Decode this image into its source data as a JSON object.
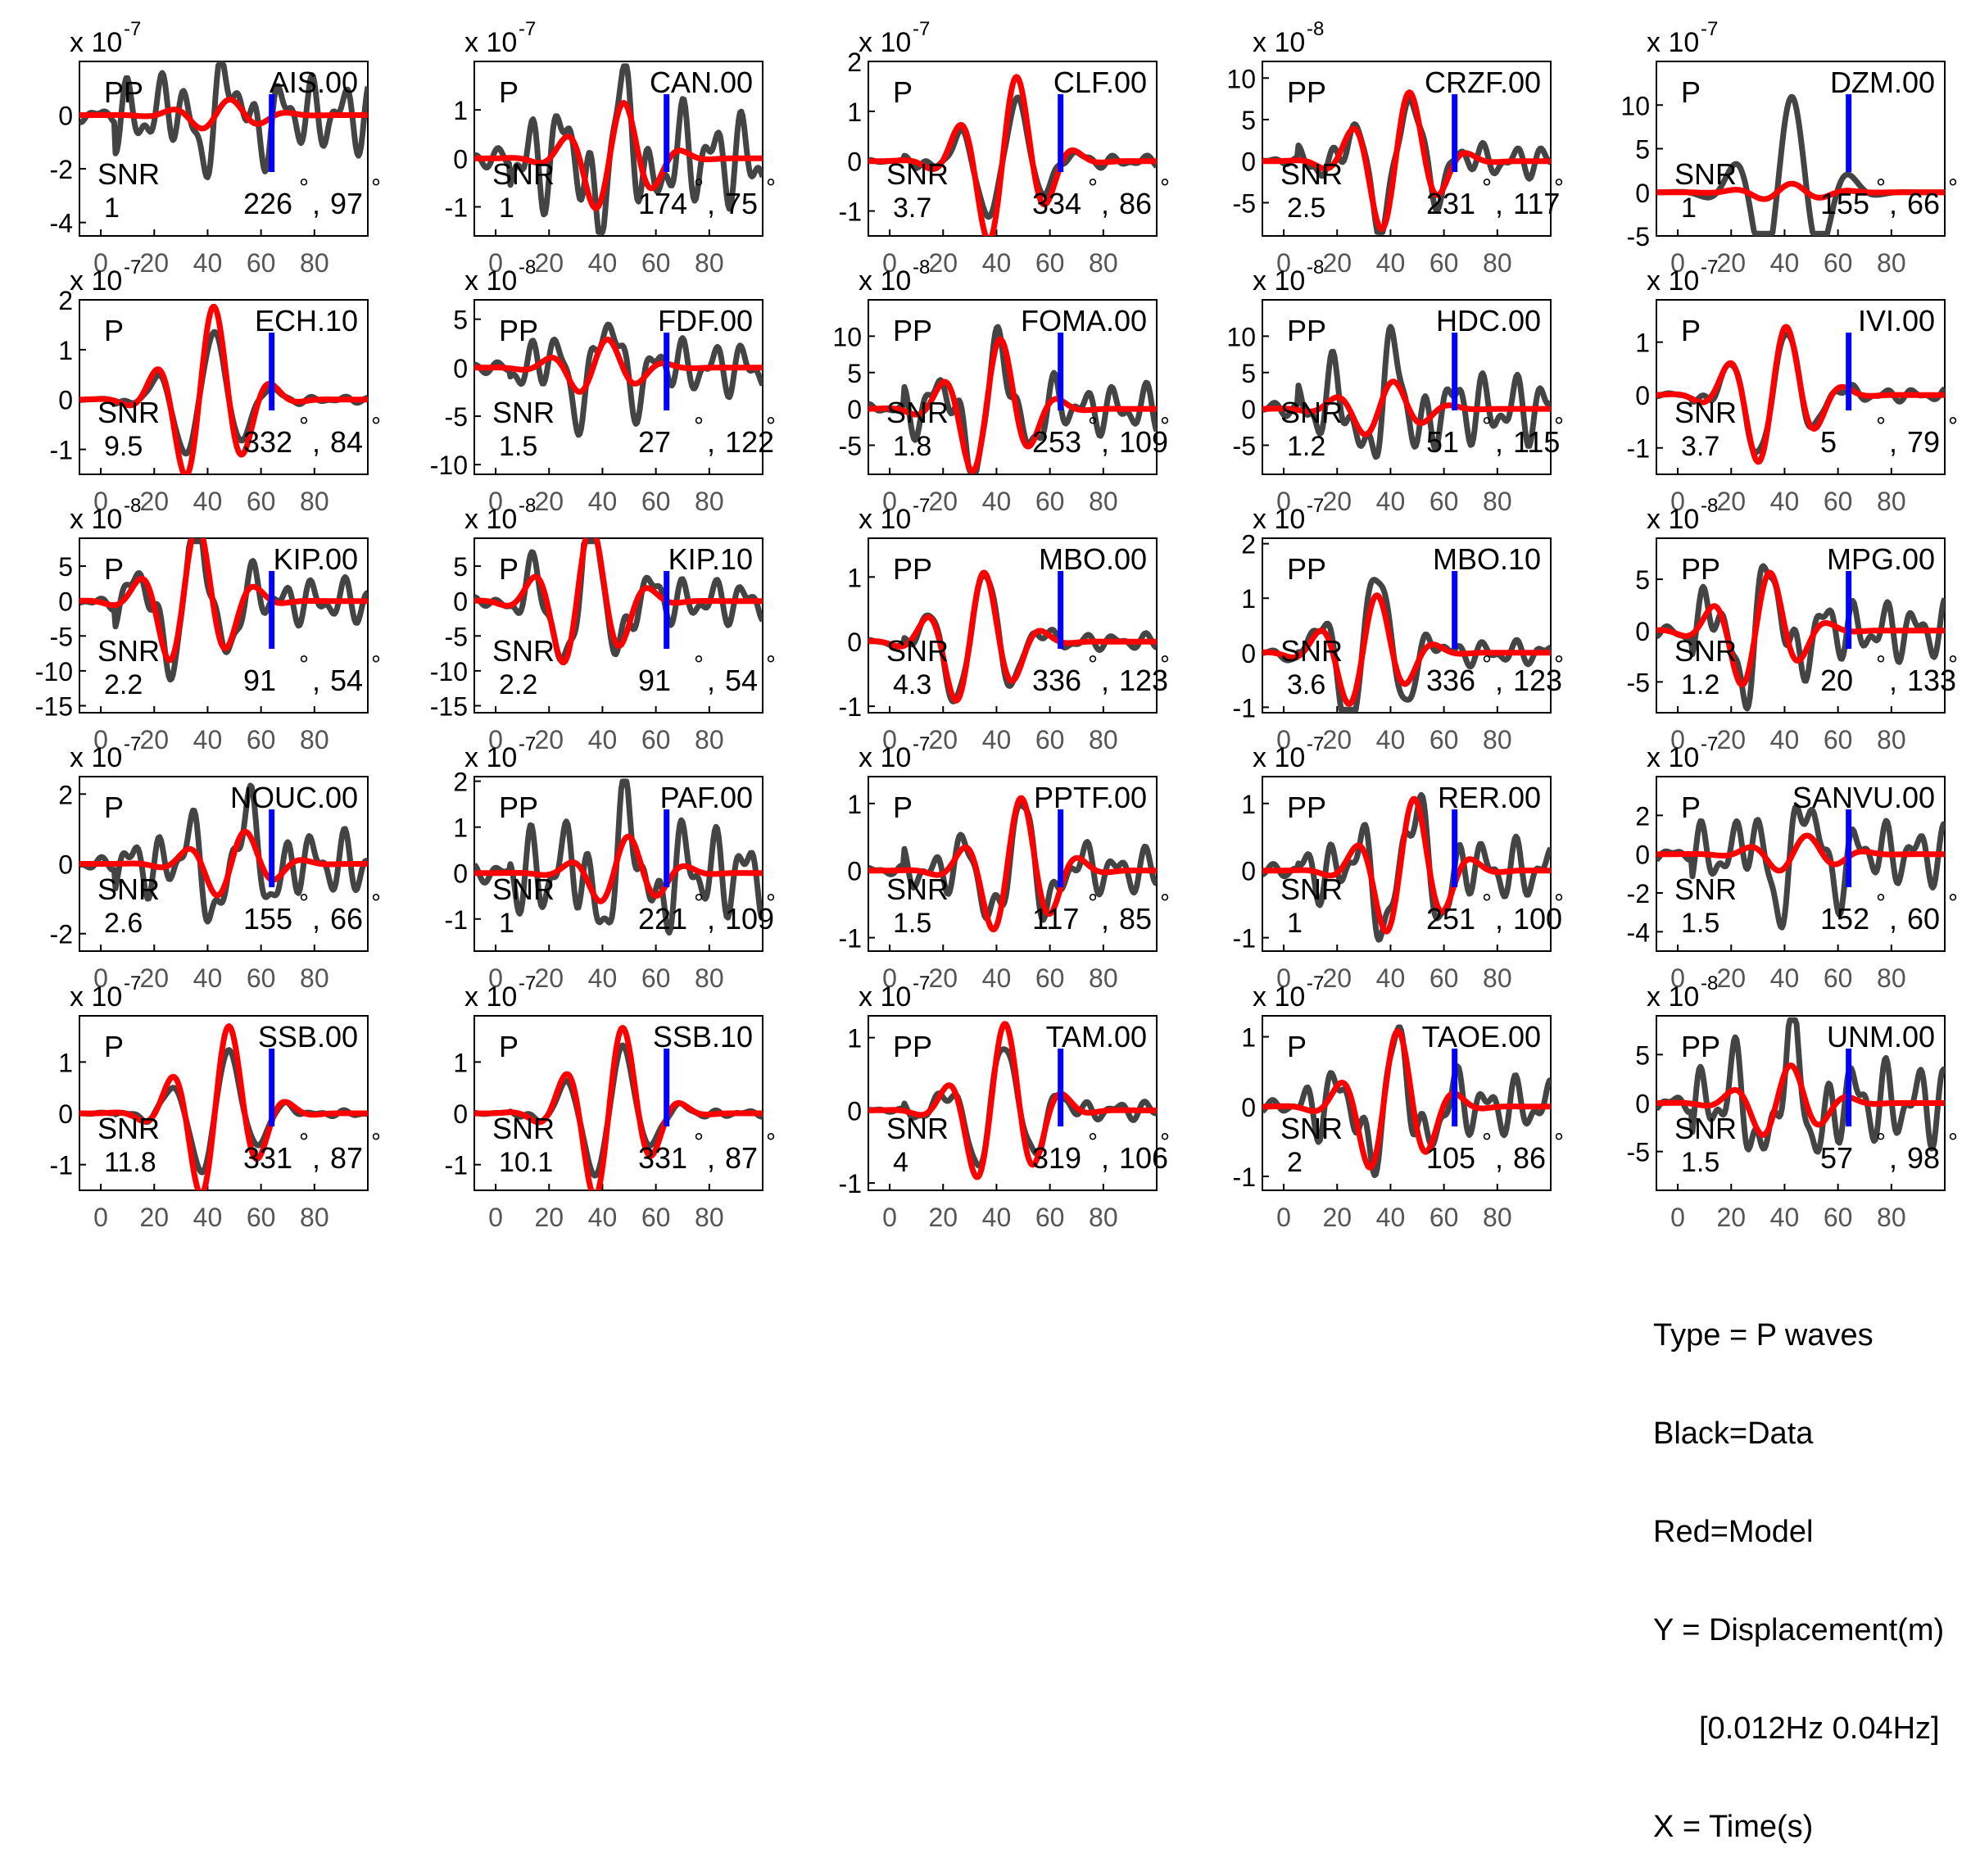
{
  "chart_data": {
    "type": "line",
    "x_ticks": [
      0,
      20,
      40,
      60,
      80
    ],
    "xlim": [
      -8,
      100
    ],
    "series_styles": {
      "data": {
        "color": "#444444"
      },
      "model": {
        "color": "#ff0000"
      },
      "marker": {
        "color": "#0000ff"
      }
    },
    "panels": [
      {
        "station": "AIS.00",
        "phase": "PP",
        "snr_label": "SNR",
        "snr": "1",
        "az": "226",
        "dist": "97",
        "exp": "-7",
        "ylim": [
          -4.5,
          2
        ],
        "yticks": [
          "-4",
          "-2",
          "0"
        ],
        "ytick_vals": [
          -4,
          -2,
          0
        ],
        "amp_data": 1.8,
        "amp_model": 0.6,
        "seed": 1,
        "data_noise": 1.0
      },
      {
        "station": "CAN.00",
        "phase": "P",
        "snr_label": "SNR",
        "snr": "1",
        "az": "174",
        "dist": "75",
        "exp": "-7",
        "ylim": [
          -1.6,
          2
        ],
        "yticks": [
          "-1",
          "0",
          "1"
        ],
        "ytick_vals": [
          -1,
          0,
          1
        ],
        "amp_data": 1.6,
        "amp_model": 1.2,
        "seed": 2,
        "data_noise": 0.8
      },
      {
        "station": "CLF.00",
        "phase": "P",
        "snr_label": "SNR",
        "snr": "3.7",
        "az": "334",
        "dist": "86",
        "exp": "-7",
        "ylim": [
          -1.5,
          2
        ],
        "yticks": [
          "-1",
          "0",
          "1",
          "2"
        ],
        "ytick_vals": [
          -1,
          0,
          1,
          2
        ],
        "amp_data": 1.5,
        "amp_model": 1.8,
        "seed": 3,
        "data_noise": 0.1
      },
      {
        "station": "CRZF.00",
        "phase": "PP",
        "snr_label": "SNR",
        "snr": "2.5",
        "az": "231",
        "dist": "117",
        "exp": "-8",
        "ylim": [
          -9,
          12
        ],
        "yticks": [
          "-5",
          "0",
          "5",
          "10"
        ],
        "ytick_vals": [
          -5,
          0,
          5,
          10
        ],
        "amp_data": 10,
        "amp_model": 9,
        "seed": 4,
        "data_noise": 0.25
      },
      {
        "station": "DZM.00",
        "phase": "P",
        "snr_label": "SNR",
        "snr": "1",
        "az": "155",
        "dist": "66",
        "exp": "-7",
        "ylim": [
          -5,
          15
        ],
        "yticks": [
          "-5",
          "0",
          "5",
          "10"
        ],
        "ytick_vals": [
          -5,
          0,
          5,
          10
        ],
        "amp_data": 13,
        "amp_model": 1,
        "seed": 5,
        "data_noise": 0.0
      },
      {
        "station": "ECH.10",
        "phase": "P",
        "snr_label": "SNR",
        "snr": "9.5",
        "az": "332",
        "dist": "84",
        "exp": "-7",
        "ylim": [
          -1.5,
          2
        ],
        "yticks": [
          "-1",
          "0",
          "1",
          "2"
        ],
        "ytick_vals": [
          -1,
          0,
          1,
          2
        ],
        "amp_data": 1.6,
        "amp_model": 1.9,
        "seed": 6,
        "data_noise": 0.05
      },
      {
        "station": "FDF.00",
        "phase": "PP",
        "snr_label": "SNR",
        "snr": "1.5",
        "az": "27",
        "dist": "122",
        "exp": "-8",
        "ylim": [
          -11,
          7
        ],
        "yticks": [
          "-10",
          "-5",
          "0",
          "5"
        ],
        "ytick_vals": [
          -10,
          -5,
          0,
          5
        ],
        "amp_data": 6,
        "amp_model": 3,
        "seed": 7,
        "data_noise": 0.6
      },
      {
        "station": "FOMA.00",
        "phase": "PP",
        "snr_label": "SNR",
        "snr": "1.8",
        "az": "253",
        "dist": "109",
        "exp": "-8",
        "ylim": [
          -9,
          15
        ],
        "yticks": [
          "-5",
          "0",
          "5",
          "10"
        ],
        "ytick_vals": [
          -5,
          0,
          5,
          10
        ],
        "amp_data": 11,
        "amp_model": 10,
        "seed": 8,
        "data_noise": 0.4
      },
      {
        "station": "HDC.00",
        "phase": "PP",
        "snr_label": "SNR",
        "snr": "1.2",
        "az": "51",
        "dist": "115",
        "exp": "-8",
        "ylim": [
          -9,
          15
        ],
        "yticks": [
          "-5",
          "0",
          "5",
          "10"
        ],
        "ytick_vals": [
          -5,
          0,
          5,
          10
        ],
        "amp_data": 9,
        "amp_model": 4,
        "seed": 9,
        "data_noise": 0.7
      },
      {
        "station": "IVI.00",
        "phase": "P",
        "snr_label": "SNR",
        "snr": "3.7",
        "az": "5",
        "dist": "79",
        "exp": "-7",
        "ylim": [
          -1.5,
          1.8
        ],
        "yticks": [
          "-1",
          "0",
          "1"
        ],
        "ytick_vals": [
          -1,
          0,
          1
        ],
        "amp_data": 1.5,
        "amp_model": 1.4,
        "seed": 10,
        "data_noise": 0.1
      },
      {
        "station": "KIP.00",
        "phase": "P",
        "snr_label": "SNR",
        "snr": "2.2",
        "az": "91",
        "dist": "54",
        "exp": "-8",
        "ylim": [
          -16,
          9
        ],
        "yticks": [
          "-15",
          "-10",
          "-5",
          "0",
          "5"
        ],
        "ytick_vals": [
          -15,
          -10,
          -5,
          0,
          5
        ],
        "amp_data": 14,
        "amp_model": 11,
        "seed": 11,
        "data_noise": 0.3
      },
      {
        "station": "KIP.10",
        "phase": "P",
        "snr_label": "SNR",
        "snr": "2.2",
        "az": "91",
        "dist": "54",
        "exp": "-8",
        "ylim": [
          -16,
          9
        ],
        "yticks": [
          "-15",
          "-10",
          "-5",
          "0",
          "5"
        ],
        "ytick_vals": [
          -15,
          -10,
          -5,
          0,
          5
        ],
        "amp_data": 14,
        "amp_model": 11,
        "seed": 12,
        "data_noise": 0.3
      },
      {
        "station": "MBO.00",
        "phase": "PP",
        "snr_label": "SNR",
        "snr": "4.3",
        "az": "336",
        "dist": "123",
        "exp": "-7",
        "ylim": [
          -1.1,
          1.6
        ],
        "yticks": [
          "-1",
          "0",
          "1"
        ],
        "ytick_vals": [
          -1,
          0,
          1
        ],
        "amp_data": 1.3,
        "amp_model": 1.1,
        "seed": 13,
        "data_noise": 0.12
      },
      {
        "station": "MBO.10",
        "phase": "PP",
        "snr_label": "SNR",
        "snr": "3.6",
        "az": "336",
        "dist": "123",
        "exp": "-7",
        "ylim": [
          -1.1,
          2.1
        ],
        "yticks": [
          "-1",
          "0",
          "1",
          "2"
        ],
        "ytick_vals": [
          -1,
          0,
          1,
          2
        ],
        "amp_data": 1.9,
        "amp_model": 1.1,
        "seed": 14,
        "data_noise": 0.15
      },
      {
        "station": "MPG.00",
        "phase": "PP",
        "snr_label": "SNR",
        "snr": "1.2",
        "az": "20",
        "dist": "133",
        "exp": "-8",
        "ylim": [
          -8,
          9
        ],
        "yticks": [
          "-5",
          "0",
          "5"
        ],
        "ytick_vals": [
          -5,
          0,
          5
        ],
        "amp_data": 7.5,
        "amp_model": 6,
        "seed": 15,
        "data_noise": 0.5
      },
      {
        "station": "NOUC.00",
        "phase": "P",
        "snr_label": "SNR",
        "snr": "2.6",
        "az": "155",
        "dist": "66",
        "exp": "-7",
        "ylim": [
          -2.5,
          2.5
        ],
        "yticks": [
          "-2",
          "0",
          "2"
        ],
        "ytick_vals": [
          -2,
          0,
          2
        ],
        "amp_data": 2.0,
        "amp_model": 1.0,
        "seed": 16,
        "data_noise": 0.6
      },
      {
        "station": "PAF.00",
        "phase": "PP",
        "snr_label": "SNR",
        "snr": "1",
        "az": "221",
        "dist": "109",
        "exp": "-7",
        "ylim": [
          -1.7,
          2.1
        ],
        "yticks": [
          "-1",
          "0",
          "1",
          "2"
        ],
        "ytick_vals": [
          -1,
          0,
          1,
          2
        ],
        "amp_data": 1.6,
        "amp_model": 0.8,
        "seed": 17,
        "data_noise": 0.8
      },
      {
        "station": "PPTF.00",
        "phase": "P",
        "snr_label": "SNR",
        "snr": "1.5",
        "az": "117",
        "dist": "85",
        "exp": "-7",
        "ylim": [
          -1.2,
          1.4
        ],
        "yticks": [
          "-1",
          "0",
          "1"
        ],
        "ytick_vals": [
          -1,
          0,
          1
        ],
        "amp_data": 1.1,
        "amp_model": 1.1,
        "seed": 18,
        "data_noise": 0.4
      },
      {
        "station": "RER.00",
        "phase": "PP",
        "snr_label": "SNR",
        "snr": "1",
        "az": "251",
        "dist": "100",
        "exp": "-7",
        "ylim": [
          -1.2,
          1.4
        ],
        "yticks": [
          "-1",
          "0",
          "1"
        ],
        "ytick_vals": [
          -1,
          0,
          1
        ],
        "amp_data": 1.2,
        "amp_model": 1.1,
        "seed": 19,
        "data_noise": 0.5
      },
      {
        "station": "SANVU.00",
        "phase": "P",
        "snr_label": "SNR",
        "snr": "1.5",
        "az": "152",
        "dist": "60",
        "exp": "-7",
        "ylim": [
          -5,
          4
        ],
        "yticks": [
          "-4",
          "-2",
          "0",
          "2"
        ],
        "ytick_vals": [
          -4,
          -2,
          0,
          2
        ],
        "amp_data": 3.5,
        "amp_model": 1.0,
        "seed": 20,
        "data_noise": 0.6
      },
      {
        "station": "SSB.00",
        "phase": "P",
        "snr_label": "SNR",
        "snr": "11.8",
        "az": "331",
        "dist": "87",
        "exp": "-7",
        "ylim": [
          -1.5,
          1.9
        ],
        "yticks": [
          "-1",
          "0",
          "1"
        ],
        "ytick_vals": [
          -1,
          0,
          1
        ],
        "amp_data": 1.5,
        "amp_model": 1.8,
        "seed": 21,
        "data_noise": 0.05
      },
      {
        "station": "SSB.10",
        "phase": "P",
        "snr_label": "SNR",
        "snr": "10.1",
        "az": "331",
        "dist": "87",
        "exp": "-7",
        "ylim": [
          -1.5,
          1.9
        ],
        "yticks": [
          "-1",
          "0",
          "1"
        ],
        "ytick_vals": [
          -1,
          0,
          1
        ],
        "amp_data": 1.6,
        "amp_model": 1.8,
        "seed": 22,
        "data_noise": 0.05
      },
      {
        "station": "TAM.00",
        "phase": "PP",
        "snr_label": "SNR",
        "snr": "4",
        "az": "319",
        "dist": "106",
        "exp": "-7",
        "ylim": [
          -1.1,
          1.3
        ],
        "yticks": [
          "-1",
          "0",
          "1"
        ],
        "ytick_vals": [
          -1,
          0,
          1
        ],
        "amp_data": 1.1,
        "amp_model": 1.2,
        "seed": 23,
        "data_noise": 0.15
      },
      {
        "station": "TAOE.00",
        "phase": "P",
        "snr_label": "SNR",
        "snr": "2",
        "az": "105",
        "dist": "86",
        "exp": "-7",
        "ylim": [
          -1.2,
          1.3
        ],
        "yticks": [
          "-1",
          "0",
          "1"
        ],
        "ytick_vals": [
          -1,
          0,
          1
        ],
        "amp_data": 1.1,
        "amp_model": 1.1,
        "seed": 24,
        "data_noise": 0.5
      },
      {
        "station": "UNM.00",
        "phase": "PP",
        "snr_label": "SNR",
        "snr": "1.5",
        "az": "57",
        "dist": "98",
        "exp": "-8",
        "ylim": [
          -9,
          9
        ],
        "yticks": [
          "-5",
          "0",
          "5"
        ],
        "ytick_vals": [
          -5,
          0,
          5
        ],
        "amp_data": 8,
        "amp_model": 4,
        "seed": 25,
        "data_noise": 0.7
      }
    ]
  },
  "legend": {
    "line1": "Type = P waves",
    "line2": "Black=Data",
    "line3": "Red=Model",
    "line4": "Y = Displacement(m)",
    "line5": "[0.012Hz 0.04Hz]",
    "line6": "X = Time(s)"
  }
}
